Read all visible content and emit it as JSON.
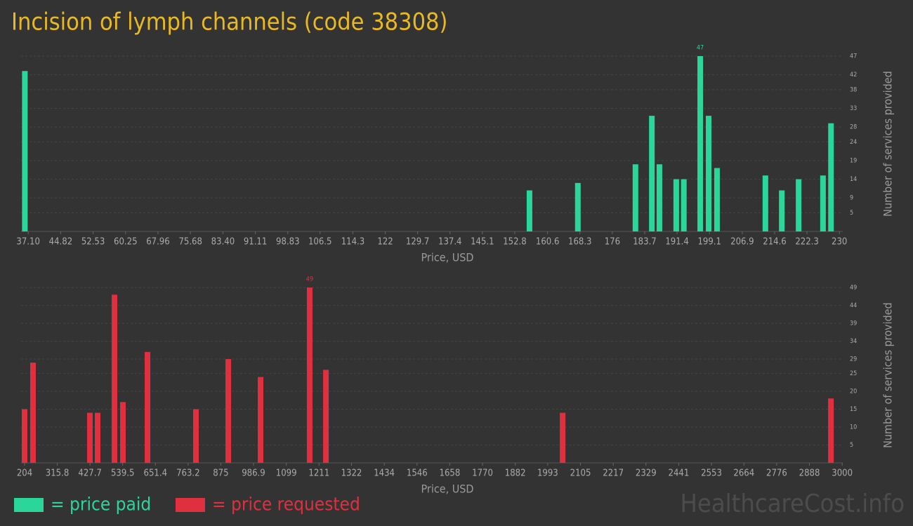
{
  "title": "Incision of lymph channels (code 38308)",
  "watermark": "HealthcareCost.info",
  "chart_data": [
    {
      "type": "bar",
      "x": [
        36.3,
        156.3,
        167.8,
        181.5,
        185.4,
        187.2,
        191.2,
        193.0,
        196.9,
        198.9,
        200.9,
        212.4,
        216.3,
        220.3,
        226.1,
        228.0
      ],
      "series": [
        {
          "name": "= price paid",
          "color": "#2ad69a",
          "values": [
            43,
            11,
            13,
            18,
            31,
            18,
            14,
            14,
            47,
            31,
            17,
            15,
            11,
            14,
            15,
            29
          ]
        }
      ],
      "xlabel": "Price, USD",
      "ylabel": "Number of services provided",
      "xlim": [
        35.4,
        230.8
      ],
      "xticks": [
        {
          "value": 37.1,
          "label": "37.10"
        },
        44.82,
        52.53,
        60.25,
        67.96,
        75.68,
        {
          "value": 83.4,
          "label": "83.40"
        },
        91.11,
        98.83,
        106.5,
        114.3,
        122,
        129.7,
        137.4,
        145.1,
        152.8,
        160.6,
        168.3,
        176,
        183.7,
        191.4,
        199.1,
        206.9,
        214.6,
        222.3,
        230
      ],
      "ylim": [
        0,
        47
      ],
      "yticks": [
        5,
        9,
        14,
        19,
        24,
        28,
        33,
        38,
        42,
        47
      ],
      "grid": true
    },
    {
      "type": "bar",
      "x": [
        204,
        232.8,
        427.4,
        453.8,
        511.5,
        540.3,
        624.4,
        790,
        900.6,
        1011,
        1179,
        1234.5,
        2044,
        2961.5
      ],
      "series": [
        {
          "name": "= price requested",
          "color": "#e0303f",
          "values": [
            15,
            28,
            14,
            14,
            47,
            17,
            31,
            15,
            29,
            24,
            49,
            26,
            14,
            18
          ]
        }
      ],
      "xlabel": "Price, USD",
      "ylabel": "Number of services provided",
      "xlim": [
        192,
        3002
      ],
      "xticks": [
        204,
        315.8,
        427.7,
        539.5,
        651.4,
        763.2,
        875,
        986.9,
        1099,
        1211,
        1322,
        1434,
        1546,
        1658,
        1770,
        1882,
        1993,
        2105,
        2217,
        2329,
        2441,
        2553,
        2664,
        2776,
        2888,
        3000
      ],
      "ylim": [
        0,
        49
      ],
      "yticks": [
        5,
        10,
        15,
        20,
        25,
        29,
        34,
        39,
        44,
        49
      ],
      "grid": true
    }
  ]
}
